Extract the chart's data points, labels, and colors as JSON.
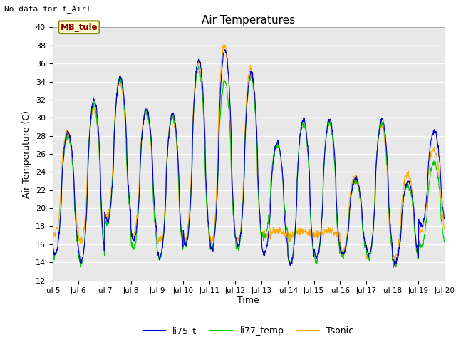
{
  "title": "Air Temperatures",
  "no_data_text": "No data for f_AirT",
  "station_label": "MB_tule",
  "ylabel": "Air Temperature (C)",
  "xlabel": "Time",
  "ylim": [
    12,
    40
  ],
  "yticks": [
    12,
    14,
    16,
    18,
    20,
    22,
    24,
    26,
    28,
    30,
    32,
    34,
    36,
    38,
    40
  ],
  "colors": {
    "li75_t": "#0000cc",
    "li77_temp": "#00cc00",
    "Tsonic": "#ffaa00"
  },
  "legend_labels": [
    "li75_t",
    "li77_temp",
    "Tsonic"
  ],
  "bg_color": "#e0e0e0",
  "axes_bg": "#e8e8e8",
  "day_peaks_li75": [
    28.5,
    32.0,
    34.5,
    31.0,
    30.5,
    36.5,
    37.5,
    35.0,
    27.2,
    29.8,
    29.8,
    23.2,
    29.8,
    23.0,
    28.5
  ],
  "day_mins_li75": [
    14.8,
    14.0,
    18.5,
    16.5,
    14.5,
    16.0,
    15.5,
    15.8,
    15.0,
    13.8,
    14.5,
    15.0,
    14.8,
    14.0,
    18.0
  ],
  "day_peaks_li77": [
    28.0,
    31.5,
    34.2,
    30.8,
    30.2,
    35.5,
    34.0,
    34.5,
    27.0,
    29.5,
    29.5,
    23.0,
    29.5,
    22.5,
    25.0
  ],
  "day_mins_li77": [
    14.8,
    13.8,
    18.2,
    15.5,
    14.5,
    15.8,
    15.5,
    15.5,
    16.8,
    13.8,
    14.0,
    14.8,
    14.5,
    13.8,
    15.8
  ],
  "day_peaks_tsonic": [
    28.5,
    31.0,
    34.0,
    30.8,
    30.2,
    36.0,
    38.0,
    35.5,
    17.5,
    17.5,
    17.5,
    23.5,
    29.2,
    23.8,
    26.5
  ],
  "day_mins_tsonic": [
    17.0,
    16.0,
    18.8,
    16.8,
    14.5,
    16.5,
    16.0,
    15.8,
    17.0,
    17.0,
    17.0,
    15.2,
    14.5,
    14.5,
    17.5
  ],
  "n_days": 15,
  "pts_per_day": 96
}
